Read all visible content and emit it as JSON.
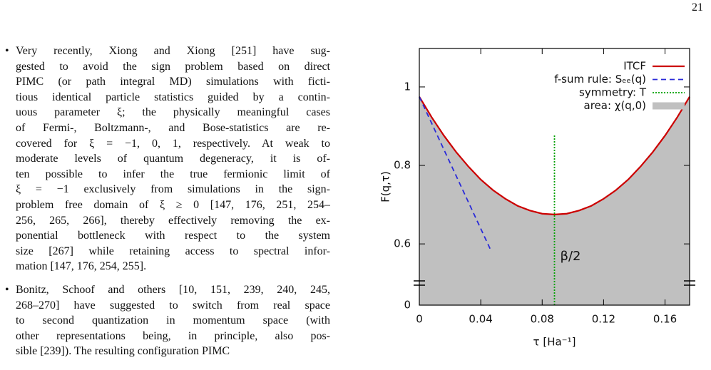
{
  "page_number": "21",
  "items": [
    {
      "lines": [
        "Very recently, Xiong and Xiong [251] have sug-",
        "gested to avoid the sign problem based on direct",
        "PIMC (or path integral MD) simulations with ficti-",
        "tious identical particle statistics guided by a contin-",
        "uous parameter ξ; the physically meaningful cases",
        "of Fermi-, Boltzmann-, and Bose-statistics are re-",
        "covered for ξ = −1, 0, 1, respectively. At weak to",
        "moderate levels of quantum degeneracy, it is of-",
        "ten possible to infer the true fermionic limit of",
        "ξ = −1 exclusively from simulations in the sign-",
        "problem free domain of ξ ≥ 0 [147, 176, 251, 254–",
        "256, 265, 266], thereby effectively removing the ex-",
        "ponential bottleneck with respect to the system",
        "size [267] while retaining access to spectral infor-",
        "mation [147, 176, 254, 255]."
      ]
    },
    {
      "lines": [
        "Bonitz, Schoof and others [10, 151, 239, 240, 245,",
        "268–270] have suggested to switch from real space",
        "to second quantization in momentum space (with",
        "other representations being, in principle, also pos-",
        "sible [239]). The resulting configuration PIMC"
      ]
    }
  ],
  "chart_data": {
    "type": "line",
    "x_label": "τ [Ha⁻¹]",
    "y_label": "F(q,τ)",
    "xlim": [
      0,
      0.176
    ],
    "ylim": [
      0.444,
      1.098
    ],
    "xticks": [
      0,
      0.04,
      0.08,
      0.12,
      0.16
    ],
    "yticks": [
      0.6,
      0.8,
      1
    ],
    "y_bottom_label": "0",
    "annotation": "β/2",
    "series": [
      {
        "name": "ITCF",
        "color": "#cc0000",
        "style": "solid",
        "x": [
          0,
          0.008,
          0.016,
          0.024,
          0.032,
          0.04,
          0.048,
          0.056,
          0.064,
          0.072,
          0.08,
          0.088,
          0.096,
          0.104,
          0.112,
          0.12,
          0.128,
          0.136,
          0.144,
          0.152,
          0.16,
          0.168,
          0.176
        ],
        "values": [
          0.975,
          0.923,
          0.876,
          0.834,
          0.797,
          0.764,
          0.737,
          0.715,
          0.697,
          0.685,
          0.677,
          0.675,
          0.677,
          0.685,
          0.697,
          0.715,
          0.737,
          0.764,
          0.797,
          0.834,
          0.876,
          0.923,
          0.975
        ]
      },
      {
        "name": "f-sum rule: Sₑₑ(q)",
        "color": "#2a2ad8",
        "style": "dashed",
        "x": [
          0,
          0.047
        ],
        "values": [
          0.975,
          0.58
        ]
      },
      {
        "name": "symmetry: T",
        "color": "#00a000",
        "style": "dotted",
        "x": [
          0.088,
          0.088
        ],
        "values": [
          0.444,
          0.88
        ]
      },
      {
        "name": "area: χ(q,0)",
        "color": "#c0c0c0",
        "style": "area",
        "x": [
          0,
          0.008,
          0.016,
          0.024,
          0.032,
          0.04,
          0.048,
          0.056,
          0.064,
          0.072,
          0.08,
          0.088,
          0.096,
          0.104,
          0.112,
          0.12,
          0.128,
          0.136,
          0.144,
          0.152,
          0.16,
          0.168,
          0.176
        ],
        "values": [
          0.975,
          0.923,
          0.876,
          0.834,
          0.797,
          0.764,
          0.737,
          0.715,
          0.697,
          0.685,
          0.677,
          0.675,
          0.677,
          0.685,
          0.697,
          0.715,
          0.737,
          0.764,
          0.797,
          0.834,
          0.876,
          0.923,
          0.975
        ]
      }
    ]
  }
}
